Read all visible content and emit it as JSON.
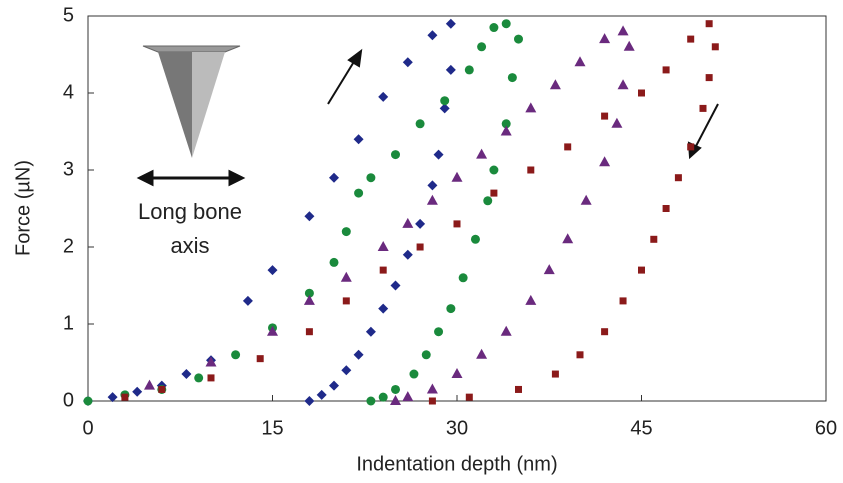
{
  "chart_data": {
    "type": "scatter",
    "xlabel": "Indentation depth (nm)",
    "ylabel": "Force (µN)",
    "annotation": [
      "Long bone",
      "axis"
    ],
    "xlim": [
      0,
      60
    ],
    "xticks": [
      0,
      15,
      30,
      45,
      60
    ],
    "ylim": [
      0,
      5
    ],
    "yticks": [
      0,
      1,
      2,
      3,
      4,
      5
    ],
    "series": [
      {
        "color": "#1f2a8a",
        "marker": "diamond",
        "x": [
          0,
          2,
          4,
          6,
          8,
          10,
          13,
          15,
          18,
          20,
          22,
          24,
          26,
          28,
          29.5,
          29.5,
          29,
          28.5,
          28,
          27,
          26,
          25,
          24,
          23,
          22,
          21,
          20,
          19,
          18
        ],
        "values": [
          0,
          0.05,
          0.12,
          0.2,
          0.35,
          0.53,
          1.3,
          1.7,
          2.4,
          2.9,
          3.4,
          3.95,
          4.4,
          4.75,
          4.9,
          4.3,
          3.8,
          3.2,
          2.8,
          2.3,
          1.9,
          1.5,
          1.2,
          0.9,
          0.6,
          0.4,
          0.2,
          0.08,
          0
        ]
      },
      {
        "color": "#1a8a3c",
        "marker": "circle",
        "x": [
          0,
          3,
          6,
          9,
          12,
          15,
          18,
          20,
          21,
          22,
          23,
          25,
          27,
          29,
          31,
          32,
          33,
          34,
          35,
          34.5,
          34,
          33,
          32.5,
          31.5,
          30.5,
          29.5,
          28.5,
          27.5,
          26.5,
          25,
          24,
          23
        ],
        "values": [
          0,
          0.08,
          0.15,
          0.3,
          0.6,
          0.95,
          1.4,
          1.8,
          2.2,
          2.7,
          2.9,
          3.2,
          3.6,
          3.9,
          4.3,
          4.6,
          4.85,
          4.9,
          4.7,
          4.2,
          3.6,
          3.0,
          2.6,
          2.1,
          1.6,
          1.2,
          0.9,
          0.6,
          0.35,
          0.15,
          0.05,
          0
        ]
      },
      {
        "color": "#6a2a7e",
        "marker": "triangle",
        "x": [
          5,
          10,
          15,
          18,
          21,
          24,
          26,
          28,
          30,
          32,
          34,
          36,
          38,
          40,
          42,
          43.5,
          44,
          43.5,
          43,
          42,
          40.5,
          39,
          37.5,
          36,
          34,
          32,
          30,
          28,
          26,
          25
        ],
        "values": [
          0.2,
          0.5,
          0.9,
          1.3,
          1.6,
          2.0,
          2.3,
          2.6,
          2.9,
          3.2,
          3.5,
          3.8,
          4.1,
          4.4,
          4.7,
          4.8,
          4.6,
          4.1,
          3.6,
          3.1,
          2.6,
          2.1,
          1.7,
          1.3,
          0.9,
          0.6,
          0.35,
          0.15,
          0.05,
          0
        ]
      },
      {
        "color": "#8b1a1a",
        "marker": "square",
        "x": [
          3,
          6,
          10,
          14,
          18,
          21,
          24,
          27,
          30,
          33,
          36,
          39,
          42,
          45,
          47,
          49,
          50.5,
          51,
          50.5,
          50,
          49,
          48,
          47,
          46,
          45,
          43.5,
          42,
          40,
          38,
          35,
          31,
          28
        ],
        "values": [
          0.05,
          0.15,
          0.3,
          0.55,
          0.9,
          1.3,
          1.7,
          2.0,
          2.3,
          2.7,
          3.0,
          3.3,
          3.7,
          4.0,
          4.3,
          4.7,
          4.9,
          4.6,
          4.2,
          3.8,
          3.3,
          2.9,
          2.5,
          2.1,
          1.7,
          1.3,
          0.9,
          0.6,
          0.35,
          0.15,
          0.05,
          0
        ]
      }
    ]
  }
}
